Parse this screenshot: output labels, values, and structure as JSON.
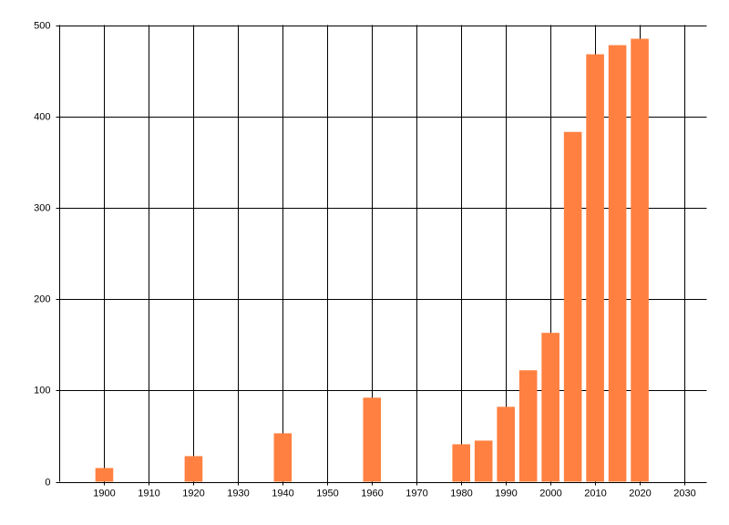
{
  "chart_data": {
    "type": "bar",
    "x": [
      1900,
      1920,
      1940,
      1960,
      1980,
      1985,
      1990,
      1995,
      2000,
      2005,
      2010,
      2015,
      2020
    ],
    "values": [
      15,
      28,
      53,
      92,
      41,
      45,
      82,
      122,
      163,
      383,
      468,
      478,
      485
    ],
    "color": "#ff8040",
    "xlim": [
      1890,
      2035
    ],
    "xticks": [
      1900,
      1910,
      1920,
      1930,
      1940,
      1950,
      1960,
      1970,
      1980,
      1990,
      2000,
      2010,
      2020,
      2030
    ],
    "ylim": [
      0,
      500
    ],
    "yticks": [
      0,
      100,
      200,
      300,
      400,
      500
    ],
    "grid": true
  }
}
